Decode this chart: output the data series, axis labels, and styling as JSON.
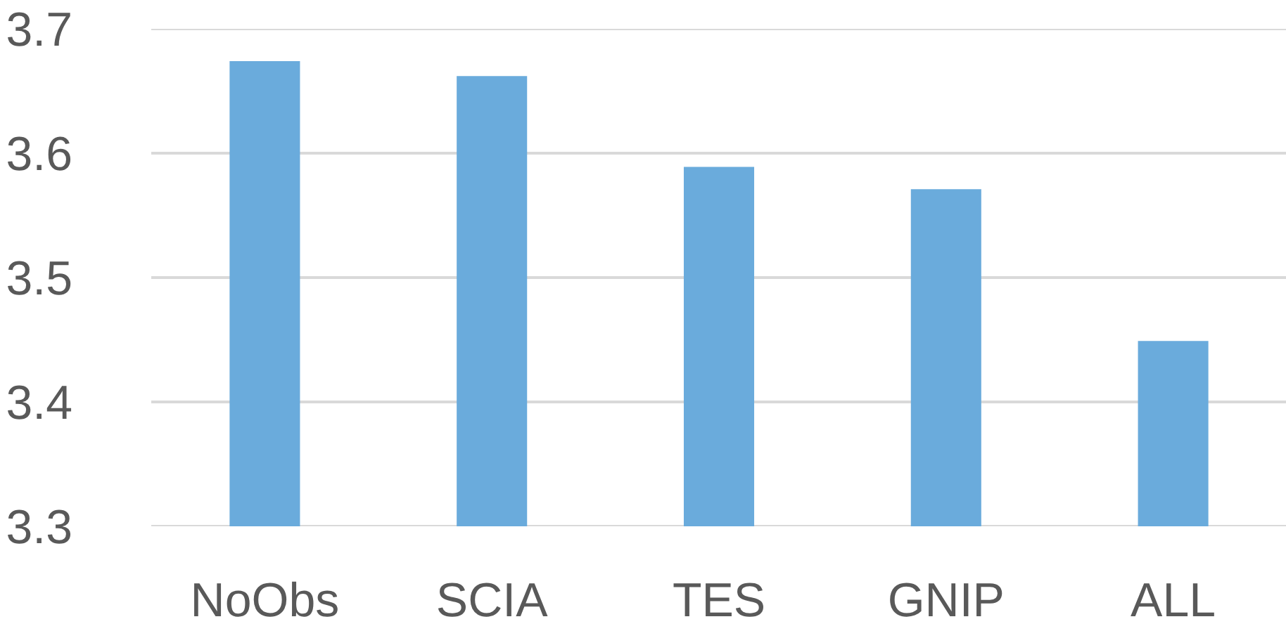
{
  "chart_data": {
    "type": "bar",
    "categories": [
      "NoObs",
      "SCIA",
      "TES",
      "GNIP",
      "ALL"
    ],
    "values": [
      3.674,
      3.662,
      3.589,
      3.571,
      3.449
    ],
    "color": "#6aabdc",
    "ylim": [
      3.3,
      3.7
    ],
    "yticks": [
      3.3,
      3.4,
      3.5,
      3.6,
      3.7
    ],
    "grid": "y"
  }
}
